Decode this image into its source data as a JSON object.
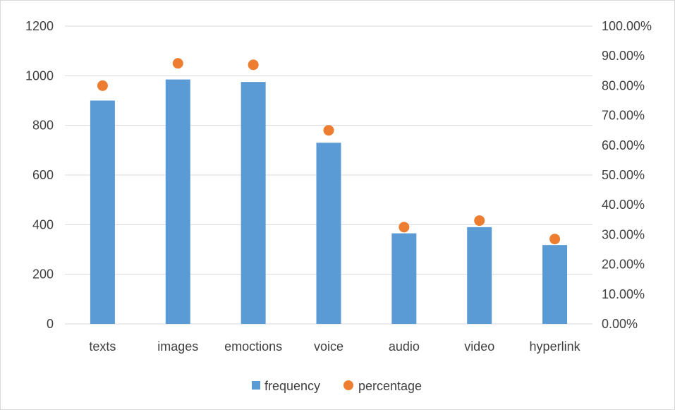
{
  "chart_data": {
    "type": "bar",
    "categories": [
      "texts",
      "images",
      "emoctions",
      "voice",
      "audio",
      "video",
      "hyperlink"
    ],
    "series": [
      {
        "name": "frequency",
        "kind": "bar",
        "axis": "left",
        "color": "#5b9bd5",
        "values": [
          900,
          985,
          975,
          730,
          365,
          390,
          318
        ]
      },
      {
        "name": "percentage",
        "kind": "scatter",
        "axis": "right",
        "color": "#ed7d31",
        "values": [
          0.8,
          0.875,
          0.87,
          0.65,
          0.325,
          0.347,
          0.285
        ]
      }
    ],
    "left_axis": {
      "ylim": [
        0,
        1200
      ],
      "ticks": [
        0,
        200,
        400,
        600,
        800,
        1000,
        1200
      ],
      "tick_labels": [
        "0",
        "200",
        "400",
        "600",
        "800",
        "1000",
        "1200"
      ]
    },
    "right_axis": {
      "ylim": [
        0,
        1
      ],
      "ticks": [
        0,
        0.1,
        0.2,
        0.3,
        0.4,
        0.5,
        0.6,
        0.7,
        0.8,
        0.9,
        1.0
      ],
      "tick_labels": [
        "0.00%",
        "10.00%",
        "20.00%",
        "30.00%",
        "40.00%",
        "50.00%",
        "60.00%",
        "70.00%",
        "80.00%",
        "90.00%",
        "100.00%"
      ]
    },
    "grid": true,
    "legend": {
      "position": "bottom-center",
      "items": [
        "frequency",
        "percentage"
      ]
    }
  }
}
